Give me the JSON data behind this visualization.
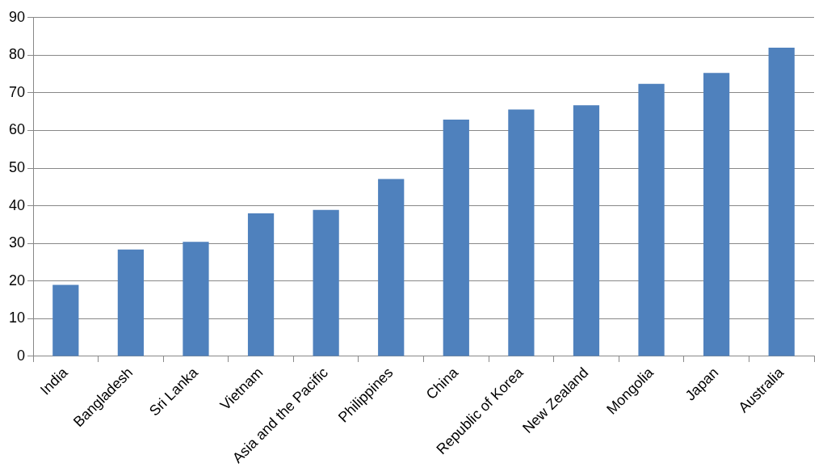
{
  "chart_data": {
    "type": "bar",
    "categories": [
      "India",
      "Bangladesh",
      "Sri Lanka",
      "Vietnam",
      "Asia and the Pacific",
      "Philippines",
      "China",
      "Republic of Korea",
      "New Zealand",
      "Mongolia",
      "Japan",
      "Australia"
    ],
    "values": [
      19,
      28.4,
      30.4,
      38,
      38.9,
      47.1,
      62.9,
      65.6,
      66.7,
      72.4,
      75.3,
      82
    ],
    "color": "#4f81bd",
    "ylim": [
      0,
      90
    ],
    "yticks": [
      0,
      10,
      20,
      30,
      40,
      50,
      60,
      70,
      80,
      90
    ],
    "grid": "y",
    "legend": false
  }
}
